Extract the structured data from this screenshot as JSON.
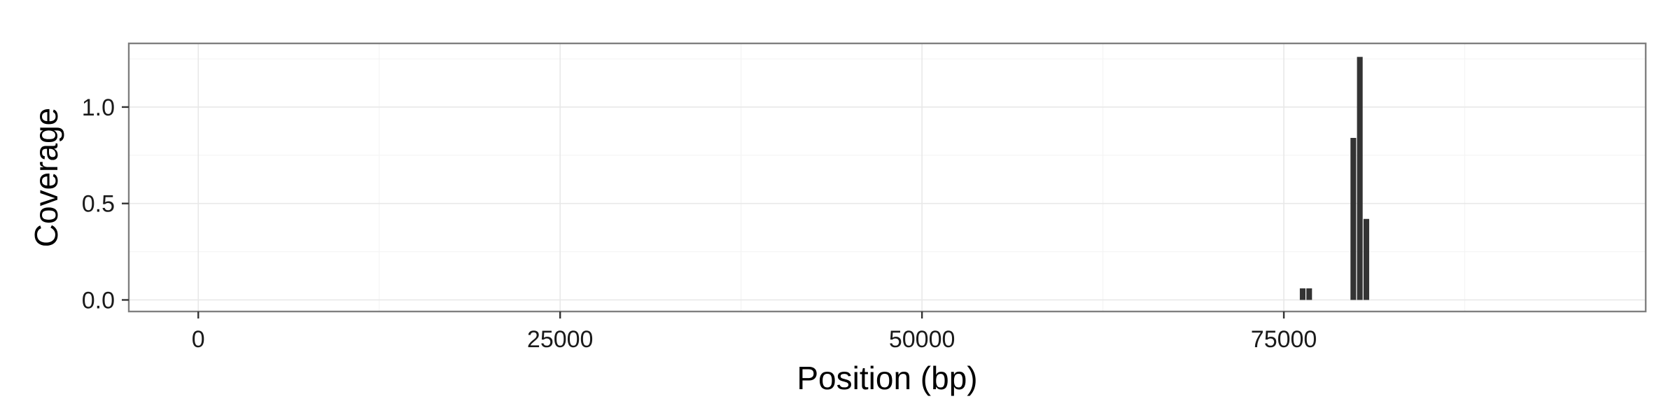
{
  "chart_data": {
    "type": "bar",
    "title": "",
    "xlabel": "Position (bp)",
    "ylabel": "Coverage",
    "xlim": [
      -4800,
      100000
    ],
    "ylim": [
      -0.06,
      1.33
    ],
    "x_ticks": [
      0,
      25000,
      50000,
      75000
    ],
    "x_tick_labels": [
      "0",
      "25000",
      "50000",
      "75000"
    ],
    "y_ticks": [
      0.0,
      0.5,
      1.0
    ],
    "y_tick_labels": [
      "0.0",
      "0.5",
      "1.0"
    ],
    "grid": true,
    "legend": "none",
    "bar_color": "#333333",
    "bar_width": 450,
    "bars": [
      {
        "x": 76300,
        "y": 0.06
      },
      {
        "x": 76750,
        "y": 0.06
      },
      {
        "x": 79800,
        "y": 0.84
      },
      {
        "x": 80250,
        "y": 1.26
      },
      {
        "x": 80700,
        "y": 0.42
      }
    ]
  }
}
